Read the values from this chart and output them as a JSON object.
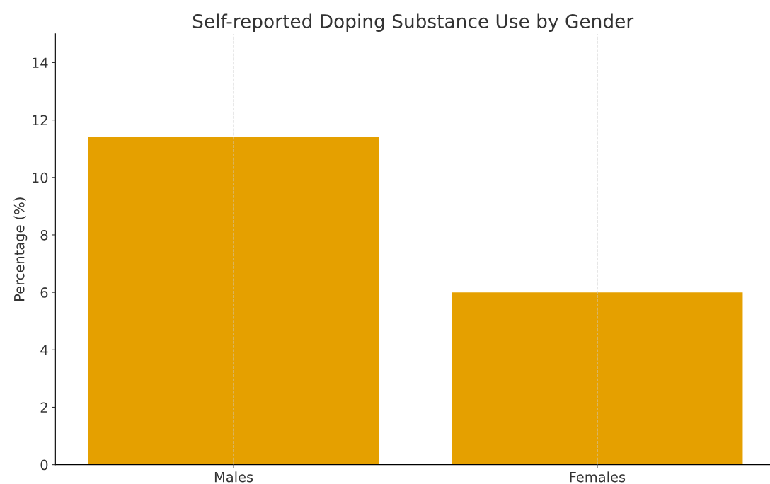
{
  "chart_data": {
    "type": "bar",
    "title": "Self-reported Doping Substance Use by Gender",
    "ylabel": "Percentage (%)",
    "categories": [
      "Males",
      "Females"
    ],
    "values": [
      11.4,
      6.0
    ],
    "color": "#e5a000",
    "ylim": [
      0,
      15
    ],
    "yticks": [
      0,
      2,
      4,
      6,
      8,
      10,
      12,
      14
    ],
    "grid": "x"
  }
}
